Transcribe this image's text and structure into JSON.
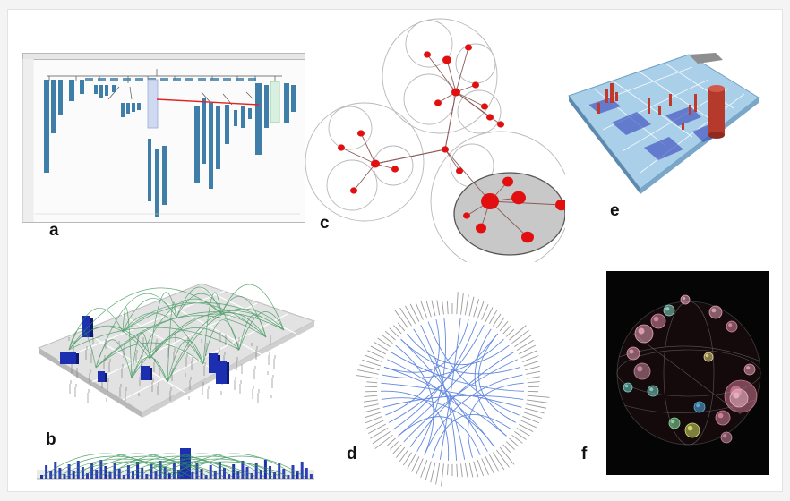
{
  "labels": {
    "a": "a",
    "b": "b",
    "c": "c",
    "d": "d",
    "e": "e",
    "f": "f"
  },
  "colors": {
    "tree_bar": "#3f7ea8",
    "tree_link": "#e02424",
    "node_red": "#e10f0f",
    "bundle_green": "#2f8f4f",
    "building_blue": "#1b2fb0",
    "radial_blue": "#2f62d6",
    "treemap_blue": "#7fb4dd",
    "treemap_red": "#c0392b",
    "sphere_bg": "#050505"
  }
}
